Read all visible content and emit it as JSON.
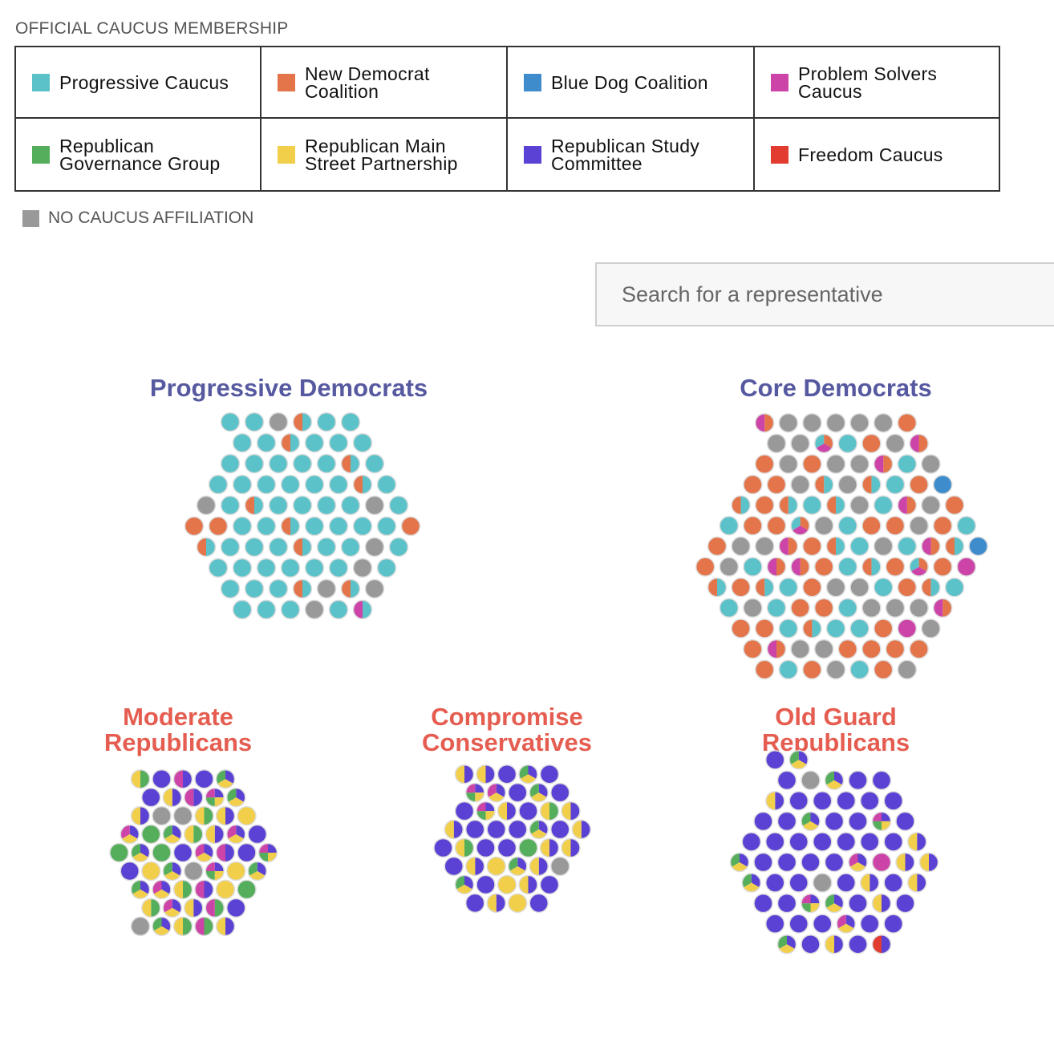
{
  "legend": {
    "heading": "OFFICIAL CAUCUS MEMBERSHIP",
    "items": [
      {
        "key": "prog",
        "label_lines": [
          "Progressive Caucus"
        ],
        "color": "#5bc2c9"
      },
      {
        "key": "newdem",
        "label_lines": [
          "New Democrat",
          "Coalition"
        ],
        "color": "#e4744a"
      },
      {
        "key": "bluedog",
        "label_lines": [
          "Blue Dog Coalition"
        ],
        "color": "#3f8ccc"
      },
      {
        "key": "solvers",
        "label_lines": [
          "Problem Solvers",
          "Caucus"
        ],
        "color": "#cc44a8"
      },
      {
        "key": "rgg",
        "label_lines": [
          "Republican",
          "Governance Group"
        ],
        "color": "#54ae5b"
      },
      {
        "key": "main",
        "label_lines": [
          "Republican Main",
          "Street Partnership"
        ],
        "color": "#f2cf4b"
      },
      {
        "key": "rsc",
        "label_lines": [
          "Republican Study",
          "Committee"
        ],
        "color": "#5b41d4"
      },
      {
        "key": "freedom",
        "label_lines": [
          "Freedom Caucus"
        ],
        "color": "#e23c31"
      }
    ],
    "no_affiliation": {
      "label": "NO CAUCUS AFFILIATION",
      "color": "#999999"
    }
  },
  "search": {
    "placeholder": "Search for a representative",
    "value": ""
  },
  "groups": [
    {
      "key": "progressive-democrats",
      "title_lines": [
        "Progressive Democrats"
      ],
      "party": "dem",
      "counts": {
        "prog": 54,
        "prog+newdem": 10,
        "newdem": 3,
        "prog+solvers": 1,
        "none": 8
      }
    },
    {
      "key": "core-democrats",
      "title_lines": [
        "Core Democrats"
      ],
      "party": "dem",
      "counts": {
        "newdem": 36,
        "none": 33,
        "prog": 23,
        "prog+newdem": 12,
        "newdem+solvers": 10,
        "solvers": 2,
        "bluedog": 2,
        "newdem+solvers+prog": 3
      }
    },
    {
      "key": "moderate-republicans",
      "title_lines": [
        "Moderate",
        "Republicans"
      ],
      "party": "rep",
      "counts": {
        "rsc": 8,
        "rgg": 4,
        "main": 4,
        "none": 4,
        "rgg+main": 6,
        "rsc+main": 6,
        "rsc+solvers": 4,
        "rgg+solvers": 2,
        "rsc+main+rgg": 8,
        "rsc+main+solvers": 5,
        "rsc+main+rgg+solvers": 3
      }
    },
    {
      "key": "compromise-conservatives",
      "title_lines": [
        "Compromise",
        "Conservatives"
      ],
      "party": "rep",
      "counts": {
        "rsc": 18,
        "rsc+main": 12,
        "main": 3,
        "rgg": 1,
        "none": 1,
        "rgg+main": 2,
        "rsc+main+rgg": 5,
        "rsc+main+solvers": 1,
        "rsc+main+rgg+solvers": 2
      }
    },
    {
      "key": "old-guard-republicans",
      "title_lines": [
        "Old Guard",
        "Republicans"
      ],
      "party": "rep",
      "counts": {
        "rsc": 40,
        "rsc+main": 8,
        "none": 2,
        "solvers": 1,
        "rsc+freedom": 1,
        "rsc+main+rgg": 7,
        "rsc+main+solvers": 2,
        "rsc+main+rgg+solvers": 2
      }
    }
  ]
}
